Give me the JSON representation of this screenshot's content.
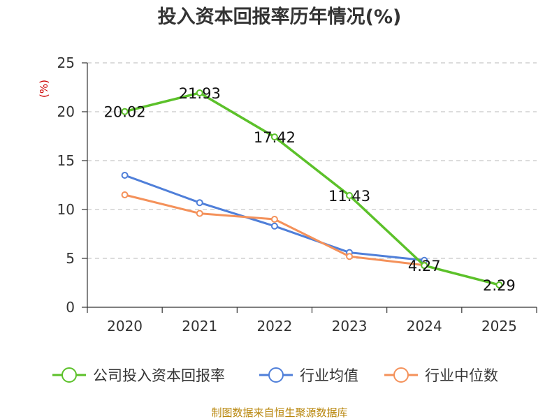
{
  "chart_data": {
    "type": "line",
    "title": "投入资本回报率历年情况(%)",
    "ylabel_unit": "(%)",
    "categories": [
      "2020",
      "2021",
      "2022",
      "2023",
      "2024",
      "2025"
    ],
    "ylim": [
      0,
      25
    ],
    "yticks": [
      0,
      5,
      10,
      15,
      20,
      25
    ],
    "grid": true,
    "legend_position": "bottom",
    "series": [
      {
        "name": "公司投入资本回报率",
        "color": "#5cc12a",
        "values": [
          20.02,
          21.93,
          17.42,
          11.43,
          4.27,
          2.29
        ],
        "labeled": true
      },
      {
        "name": "行业均值",
        "color": "#4f7fd9",
        "values": [
          13.5,
          10.7,
          8.3,
          5.6,
          4.8,
          null
        ],
        "labeled": false
      },
      {
        "name": "行业中位数",
        "color": "#f4915a",
        "values": [
          11.5,
          9.6,
          9.0,
          5.2,
          4.3,
          null
        ],
        "labeled": false
      }
    ],
    "data_labels": [
      "20.02",
      "21.93",
      "17.42",
      "11.43",
      "4.27",
      "2.29"
    ],
    "source": "制图数据来自恒生聚源数据库"
  }
}
